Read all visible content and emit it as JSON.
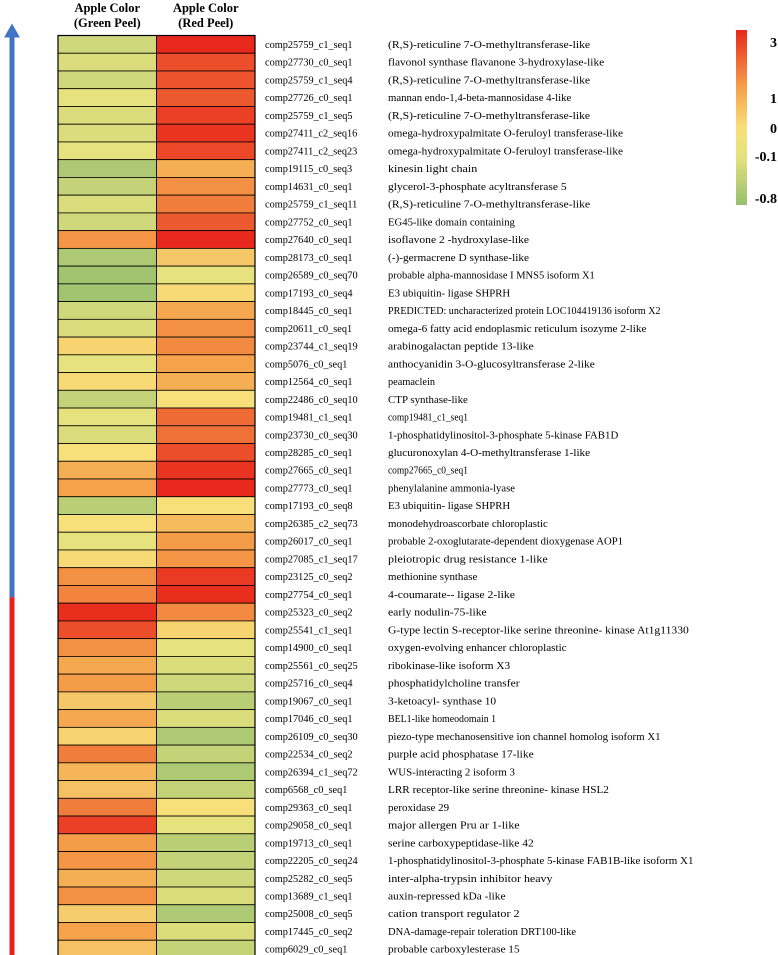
{
  "chart_data": {
    "type": "heatmap",
    "title": "",
    "columns": [
      "Apple Color\n(Green Peel)",
      "Apple Color\n(Red Peel)"
    ],
    "column_lines": [
      [
        "Apple Color",
        "(Green Peel)"
      ],
      [
        "Apple Color",
        "(Red Peel)"
      ]
    ],
    "color_scale": {
      "labels": [
        "3",
        "1",
        "0",
        "-0.1",
        "-0.8"
      ],
      "stops": [
        3,
        1,
        0,
        -0.1,
        -0.8
      ],
      "colors": [
        "#e8281c",
        "#f5a24a",
        "#f7e07a",
        "#e6e27e",
        "#97bf6f"
      ]
    },
    "rows": [
      {
        "id": "comp25759_c1_seq1",
        "desc": "(R,S)-reticuline 7-O-methyltransferase-like",
        "green": -0.3,
        "red": 3.0
      },
      {
        "id": "comp27730_c0_seq1",
        "desc": "flavonol synthase flavanone 3-hydroxylase-like",
        "green": -0.2,
        "red": 2.4
      },
      {
        "id": "comp25759_c1_seq4",
        "desc": "(R,S)-reticuline 7-O-methyltransferase-like",
        "green": -0.3,
        "red": 2.3
      },
      {
        "id": "comp27726_c0_seq1",
        "desc": "mannan endo-1,4-beta-mannosidase 4-like",
        "green": -0.1,
        "red": 2.2
      },
      {
        "id": "comp25759_c1_seq5",
        "desc": "(R,S)-reticuline 7-O-methyltransferase-like",
        "green": -0.2,
        "red": 2.6
      },
      {
        "id": "comp27411_c2_seq16",
        "desc": "omega-hydroxypalmitate O-feruloyl transferase-like",
        "green": -0.2,
        "red": 2.8
      },
      {
        "id": "comp27411_c2_seq23",
        "desc": "omega-hydroxypalmitate O-feruloyl transferase-like",
        "green": -0.1,
        "red": 2.5
      },
      {
        "id": "comp19115_c0_seq3",
        "desc": "kinesin light chain",
        "green": -0.6,
        "red": 0.8
      },
      {
        "id": "comp14631_c0_seq1",
        "desc": "glycerol-3-phosphate acyltransferase 5",
        "green": -0.4,
        "red": 1.3
      },
      {
        "id": "comp25759_c1_seq11",
        "desc": "(R,S)-reticuline 7-O-methyltransferase-like",
        "green": -0.2,
        "red": 1.6
      },
      {
        "id": "comp27752_c0_seq1",
        "desc": "EG45-like domain containing",
        "green": -0.3,
        "red": 2.2
      },
      {
        "id": "comp27640_c0_seq1",
        "desc": "isoflavone 2 -hydroxylase-like",
        "green": 1.2,
        "red": 3.0
      },
      {
        "id": "comp28173_c0_seq1",
        "desc": "(-)-germacrene D synthase-like",
        "green": -0.6,
        "red": 0.4
      },
      {
        "id": "comp26589_c0_seq70",
        "desc": "probable alpha-mannosidase I MNS5 isoform X1",
        "green": -0.7,
        "red": -0.1
      },
      {
        "id": "comp17193_c0_seq4",
        "desc": "E3 ubiquitin- ligase SHPRH",
        "green": -0.7,
        "red": 0.1
      },
      {
        "id": "comp18445_c0_seq1",
        "desc": "PREDICTED: uncharacterized protein LOC104419136 isoform X2",
        "green": -0.3,
        "red": 0.9
      },
      {
        "id": "comp20611_c0_seq1",
        "desc": "omega-6 fatty acid endoplasmic reticulum isozyme 2-like",
        "green": -0.2,
        "red": 1.3
      },
      {
        "id": "comp23744_c1_seq19",
        "desc": "arabinogalactan peptide 13-like",
        "green": 0.2,
        "red": 1.4
      },
      {
        "id": "comp5076_c0_seq1",
        "desc": "anthocyanidin 3-O-glucosyltransferase 2-like",
        "green": -0.1,
        "red": 1.0
      },
      {
        "id": "comp12564_c0_seq1",
        "desc": "peamaclein",
        "green": 0.1,
        "red": 0.8
      },
      {
        "id": "comp22486_c0_seq10",
        "desc": "CTP synthase-like",
        "green": -0.4,
        "red": 0.0
      },
      {
        "id": "comp19481_c1_seq1",
        "desc": "comp19481_c1_seq1",
        "green": -0.1,
        "red": 1.9
      },
      {
        "id": "comp23730_c0_seq30",
        "desc": "1-phosphatidylinositol-3-phosphate 5-kinase FAB1D",
        "green": -0.2,
        "red": 1.8
      },
      {
        "id": "comp28285_c0_seq1",
        "desc": "glucuronoxylan 4-O-methyltransferase 1-like",
        "green": 0.0,
        "red": 2.4
      },
      {
        "id": "comp27665_c0_seq1",
        "desc": "comp27665_c0_seq1",
        "green": 0.8,
        "red": 2.8
      },
      {
        "id": "comp27773_c0_seq1",
        "desc": "phenylalanine ammonia-lyase",
        "green": 1.0,
        "red": 3.0
      },
      {
        "id": "comp17193_c0_seq8",
        "desc": "E3 ubiquitin- ligase SHPRH",
        "green": -0.5,
        "red": 0.0
      },
      {
        "id": "comp26385_c2_seq73",
        "desc": "monodehydroascorbate chloroplastic",
        "green": 0.0,
        "red": 0.6
      },
      {
        "id": "comp26017_c0_seq1",
        "desc": "probable 2-oxoglutarate-dependent dioxygenase AOP1",
        "green": -0.1,
        "red": 1.1
      },
      {
        "id": "comp27085_c1_seq17",
        "desc": "pleiotropic drug resistance 1-like",
        "green": 0.1,
        "red": 1.2
      },
      {
        "id": "comp23125_c0_seq2",
        "desc": "methionine synthase",
        "green": 1.3,
        "red": 2.7
      },
      {
        "id": "comp27754_c0_seq1",
        "desc": "4-coumarate-- ligase 2-like",
        "green": 1.5,
        "red": 2.9
      },
      {
        "id": "comp25323_c0_seq2",
        "desc": "early nodulin-75-like",
        "green": 2.9,
        "red": 1.4
      },
      {
        "id": "comp25541_c1_seq1",
        "desc": "G-type lectin S-receptor-like serine threonine- kinase At1g11330",
        "green": 2.4,
        "red": 0.2
      },
      {
        "id": "comp14900_c0_seq1",
        "desc": "oxygen-evolving enhancer chloroplastic",
        "green": 1.3,
        "red": -0.1
      },
      {
        "id": "comp25561_c0_seq25",
        "desc": "ribokinase-like isoform X3",
        "green": 0.9,
        "red": -0.2
      },
      {
        "id": "comp25716_c0_seq4",
        "desc": "phosphatidylcholine transfer",
        "green": 1.1,
        "red": -0.3
      },
      {
        "id": "comp19067_c0_seq1",
        "desc": "3-ketoacyl- synthase 10",
        "green": 0.4,
        "red": -0.5
      },
      {
        "id": "comp17046_c0_seq1",
        "desc": "BEL1-like homeodomain 1",
        "green": 0.9,
        "red": -0.2
      },
      {
        "id": "comp26109_c0_seq30",
        "desc": "piezo-type mechanosensitive ion channel homolog isoform X1",
        "green": 0.2,
        "red": -0.6
      },
      {
        "id": "comp22534_c0_seq2",
        "desc": "purple acid phosphatase 17-like",
        "green": 1.6,
        "red": -0.4
      },
      {
        "id": "comp26394_c1_seq72",
        "desc": "WUS-interacting 2 isoform 3",
        "green": 0.7,
        "red": -0.6
      },
      {
        "id": "comp6568_c0_seq1",
        "desc": "LRR receptor-like serine threonine- kinase HSL2",
        "green": 0.5,
        "red": -0.4
      },
      {
        "id": "comp29363_c0_seq1",
        "desc": "peroxidase 29",
        "green": 1.6,
        "red": 0.0
      },
      {
        "id": "comp29058_c0_seq1",
        "desc": "major allergen Pru ar 1-like",
        "green": 2.6,
        "red": -0.1
      },
      {
        "id": "comp19713_c0_seq1",
        "desc": "serine carboxypeptidase-like 42",
        "green": 1.1,
        "red": -0.5
      },
      {
        "id": "comp22205_c0_seq24",
        "desc": "1-phosphatidylinositol-3-phosphate 5-kinase FAB1B-like isoform X1",
        "green": 1.2,
        "red": -0.4
      },
      {
        "id": "comp25282_c0_seq5",
        "desc": "inter-alpha-trypsin inhibitor heavy",
        "green": 0.8,
        "red": -0.3
      },
      {
        "id": "comp13689_c1_seq1",
        "desc": "auxin-repressed kDa -like",
        "green": 1.3,
        "red": -0.2
      },
      {
        "id": "comp25008_c0_seq5",
        "desc": "cation transport regulator 2",
        "green": 0.3,
        "red": -0.6
      },
      {
        "id": "comp17445_c0_seq2",
        "desc": "DNA-damage-repair toleration DRT100-like",
        "green": 1.0,
        "red": -0.2
      },
      {
        "id": "comp6029_c0_seq1",
        "desc": "probable carboxylesterase 15",
        "green": 0.5,
        "red": -0.4
      }
    ],
    "arrows": [
      {
        "name": "up-regulated-in-red-peel",
        "color": "#4472c4",
        "from_row": 0,
        "to_row": 31
      },
      {
        "name": "up-regulated-in-green-peel",
        "color": "#e32219",
        "from_row": 32,
        "to_row": 52
      }
    ]
  }
}
